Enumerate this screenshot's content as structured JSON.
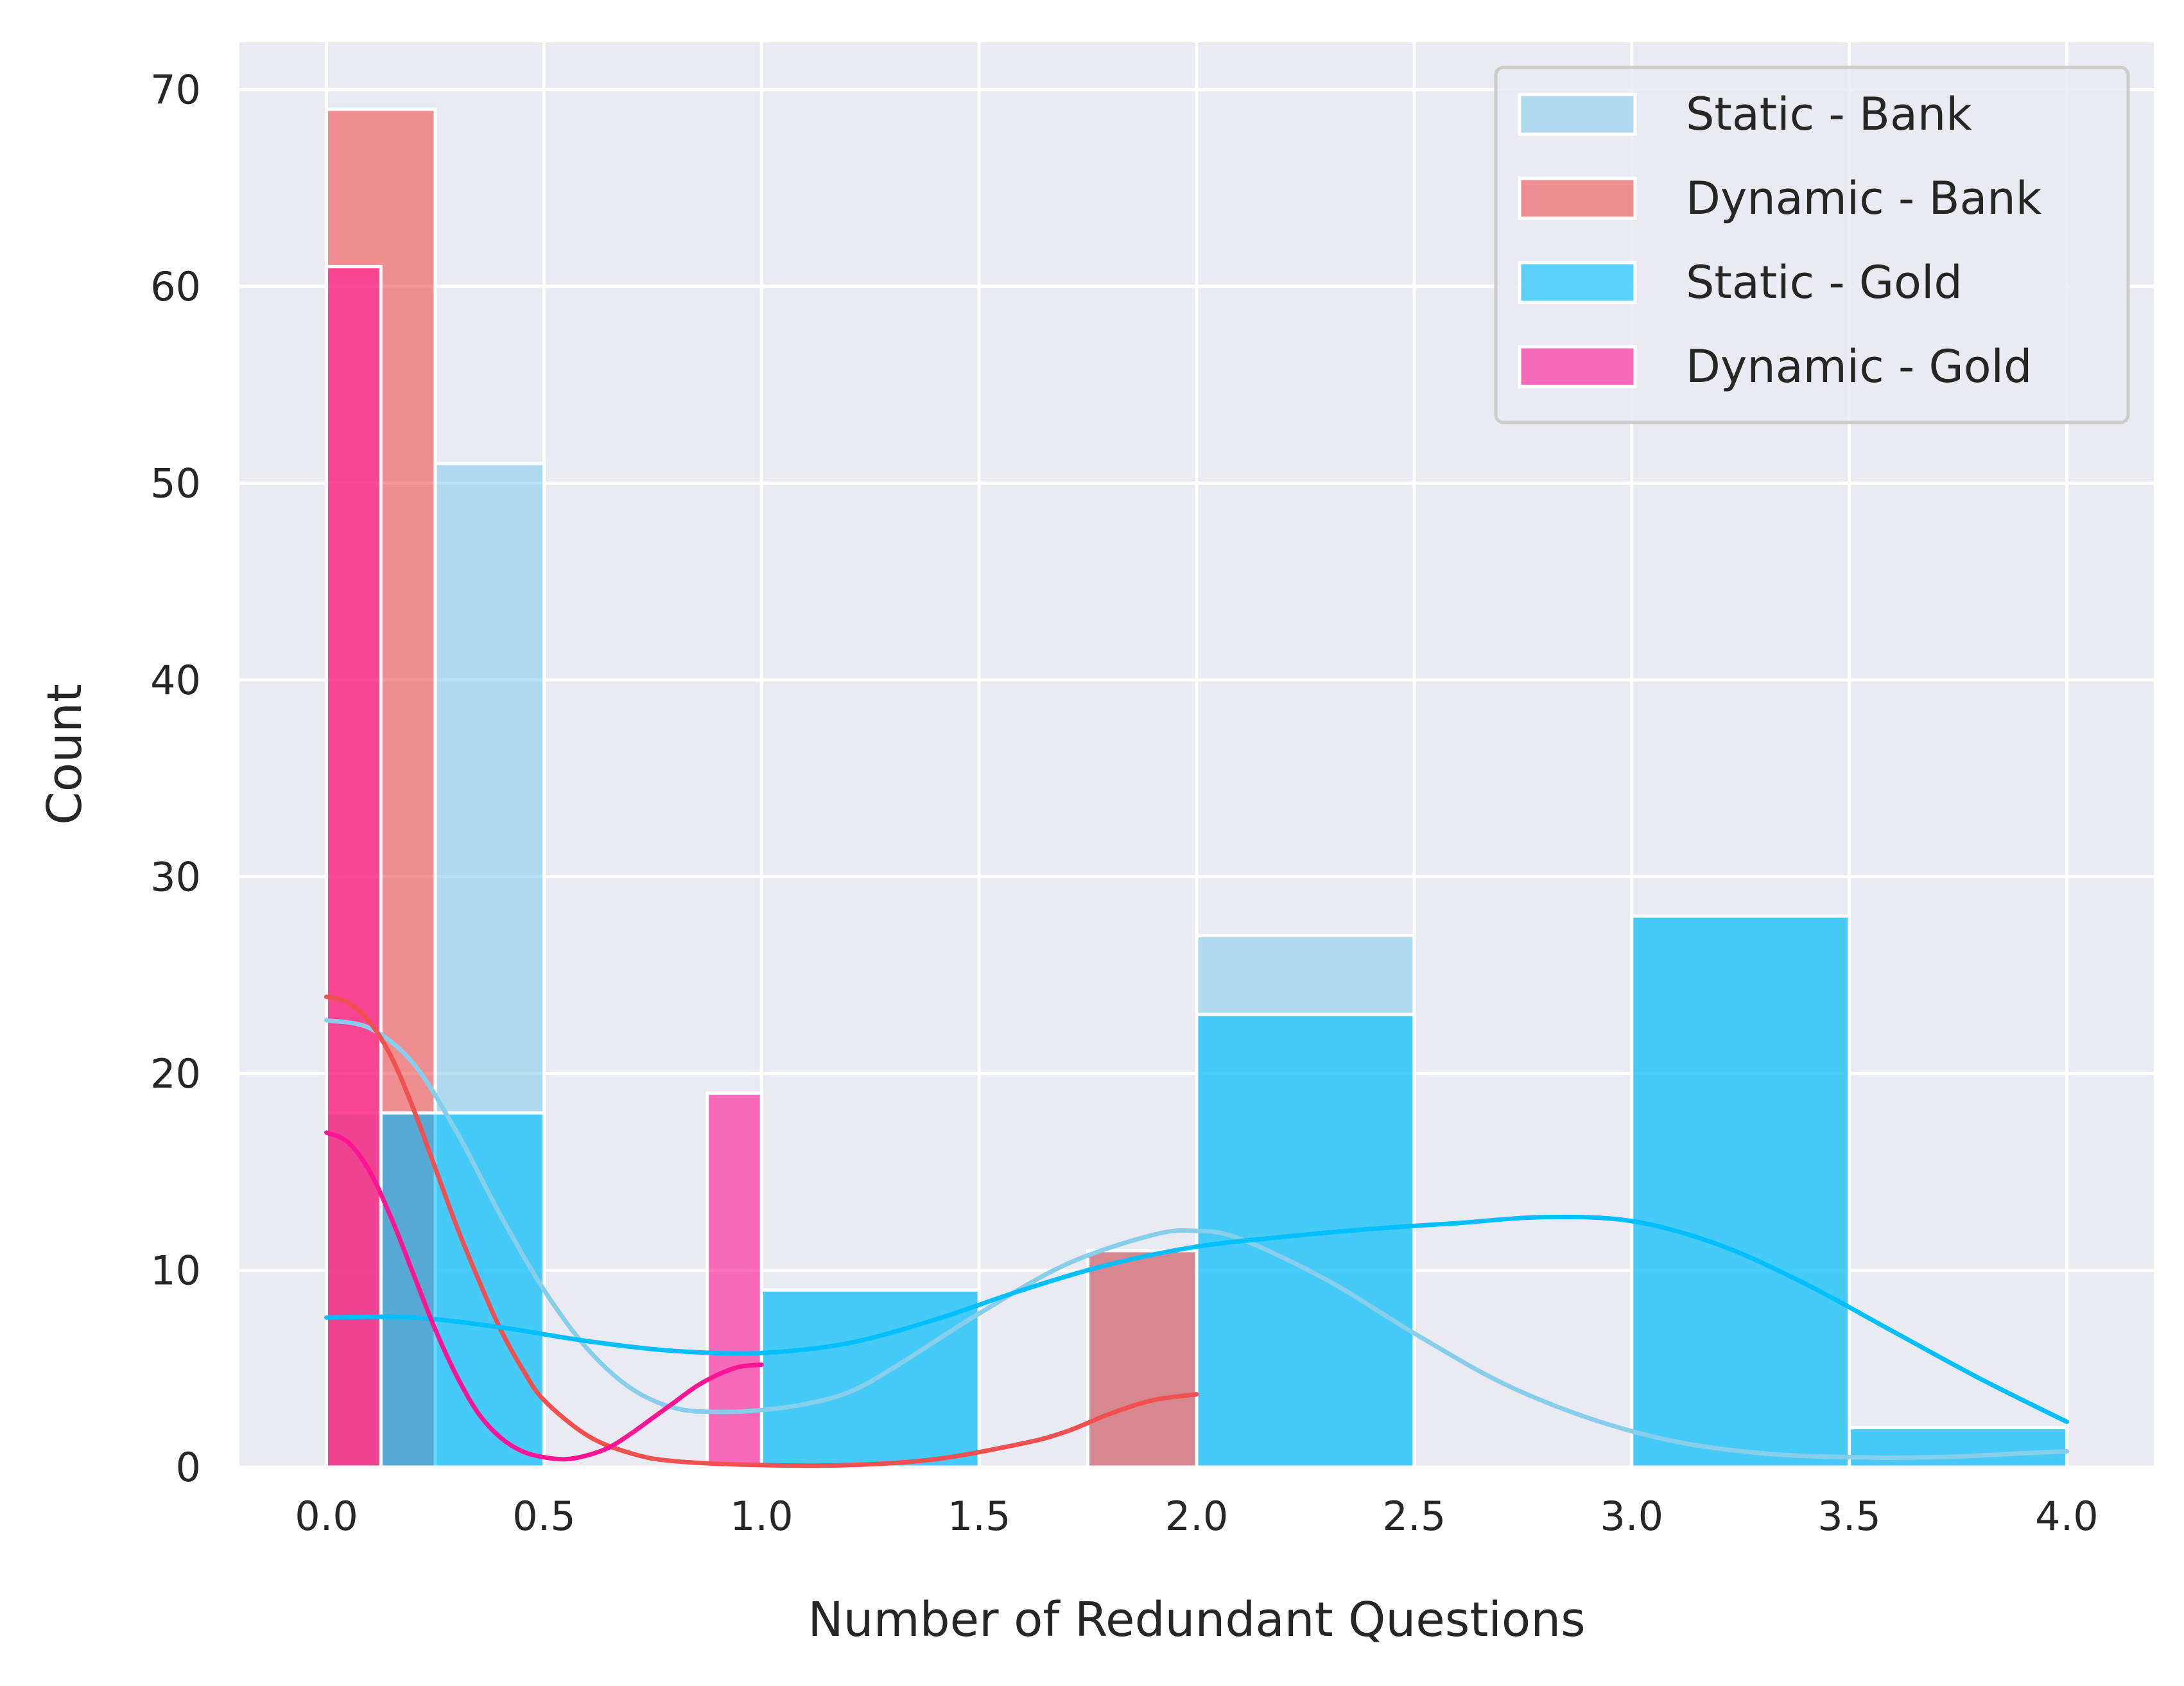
{
  "chart_data": {
    "type": "bar",
    "subtype": "histogram with kde",
    "xlabel": "Number of Redundant Questions",
    "ylabel": "Count",
    "xlim": [
      -0.2,
      4.2
    ],
    "ylim": [
      0,
      72.4
    ],
    "x_ticks": [
      "0.0",
      "0.5",
      "1.0",
      "1.5",
      "2.0",
      "2.5",
      "3.0",
      "3.5",
      "4.0"
    ],
    "y_ticks": [
      "0",
      "10",
      "20",
      "30",
      "40",
      "50",
      "60",
      "70"
    ],
    "grid": true,
    "background": "#EAEAF2",
    "legend_position": "top-right",
    "series": [
      {
        "name": "Static - Bank",
        "color": "#87CEEB",
        "bars": [
          {
            "x0": 0.0,
            "x1": 0.25,
            "value": 18
          },
          {
            "x0": 0.25,
            "x1": 0.5,
            "value": 51
          },
          {
            "x0": 1.0,
            "x1": 1.5,
            "value": 9
          },
          {
            "x0": 1.75,
            "x1": 2.0,
            "value": 11
          },
          {
            "x0": 2.0,
            "x1": 2.5,
            "value": 27
          },
          {
            "x0": 3.0,
            "x1": 3.5,
            "value": 28
          },
          {
            "x0": 3.5,
            "x1": 4.0,
            "value": 2
          }
        ],
        "kde": [
          [
            0.0,
            22.7
          ],
          [
            0.1,
            22.3
          ],
          [
            0.2,
            20.5
          ],
          [
            0.3,
            17.0
          ],
          [
            0.4,
            12.8
          ],
          [
            0.5,
            9.0
          ],
          [
            0.6,
            6.0
          ],
          [
            0.7,
            4.0
          ],
          [
            0.8,
            3.0
          ],
          [
            0.9,
            2.8
          ],
          [
            1.0,
            2.9
          ],
          [
            1.1,
            3.2
          ],
          [
            1.2,
            3.8
          ],
          [
            1.3,
            5.0
          ],
          [
            1.5,
            7.8
          ],
          [
            1.7,
            10.3
          ],
          [
            1.9,
            11.8
          ],
          [
            2.0,
            12.0
          ],
          [
            2.1,
            11.6
          ],
          [
            2.3,
            9.5
          ],
          [
            2.5,
            6.8
          ],
          [
            2.7,
            4.3
          ],
          [
            2.9,
            2.5
          ],
          [
            3.1,
            1.3
          ],
          [
            3.3,
            0.7
          ],
          [
            3.5,
            0.5
          ],
          [
            3.7,
            0.5
          ],
          [
            3.9,
            0.7
          ],
          [
            4.0,
            0.8
          ]
        ]
      },
      {
        "name": "Dynamic - Bank",
        "color": "#F05050",
        "bars": [
          {
            "x0": 0.0,
            "x1": 0.25,
            "value": 69
          },
          {
            "x0": 1.75,
            "x1": 2.0,
            "value": 11
          }
        ],
        "kde": [
          [
            0.0,
            23.9
          ],
          [
            0.05,
            23.6
          ],
          [
            0.1,
            22.6
          ],
          [
            0.15,
            20.8
          ],
          [
            0.2,
            18.2
          ],
          [
            0.25,
            15.2
          ],
          [
            0.3,
            12.2
          ],
          [
            0.35,
            9.5
          ],
          [
            0.4,
            7.0
          ],
          [
            0.45,
            5.0
          ],
          [
            0.5,
            3.4
          ],
          [
            0.6,
            1.6
          ],
          [
            0.7,
            0.7
          ],
          [
            0.8,
            0.3
          ],
          [
            1.0,
            0.1
          ],
          [
            1.2,
            0.1
          ],
          [
            1.4,
            0.4
          ],
          [
            1.6,
            1.2
          ],
          [
            1.7,
            1.8
          ],
          [
            1.8,
            2.7
          ],
          [
            1.9,
            3.4
          ],
          [
            2.0,
            3.7
          ]
        ]
      },
      {
        "name": "Static - Gold",
        "color": "#00BFFF",
        "bars": [
          {
            "x0": 0.125,
            "x1": 0.5,
            "value": 18
          },
          {
            "x0": 1.0,
            "x1": 1.5,
            "value": 9
          },
          {
            "x0": 2.0,
            "x1": 2.5,
            "value": 23
          },
          {
            "x0": 3.0,
            "x1": 3.5,
            "value": 28
          },
          {
            "x0": 3.5,
            "x1": 4.0,
            "value": 2
          }
        ],
        "kde": [
          [
            0.0,
            7.6
          ],
          [
            0.2,
            7.6
          ],
          [
            0.4,
            7.1
          ],
          [
            0.6,
            6.4
          ],
          [
            0.8,
            5.9
          ],
          [
            1.0,
            5.8
          ],
          [
            1.2,
            6.3
          ],
          [
            1.4,
            7.5
          ],
          [
            1.6,
            9.0
          ],
          [
            1.8,
            10.3
          ],
          [
            2.0,
            11.2
          ],
          [
            2.2,
            11.7
          ],
          [
            2.4,
            12.1
          ],
          [
            2.6,
            12.4
          ],
          [
            2.8,
            12.7
          ],
          [
            3.0,
            12.5
          ],
          [
            3.2,
            11.3
          ],
          [
            3.4,
            9.3
          ],
          [
            3.6,
            6.9
          ],
          [
            3.8,
            4.5
          ],
          [
            4.0,
            2.3
          ]
        ]
      },
      {
        "name": "Dynamic - Gold",
        "color": "#FF1493",
        "bars": [
          {
            "x0": 0.0,
            "x1": 0.125,
            "value": 61
          },
          {
            "x0": 0.875,
            "x1": 1.0,
            "value": 19
          }
        ],
        "kde": [
          [
            0.0,
            17.0
          ],
          [
            0.05,
            16.5
          ],
          [
            0.1,
            15.0
          ],
          [
            0.15,
            12.6
          ],
          [
            0.2,
            9.8
          ],
          [
            0.25,
            7.0
          ],
          [
            0.3,
            4.6
          ],
          [
            0.35,
            2.7
          ],
          [
            0.4,
            1.5
          ],
          [
            0.45,
            0.8
          ],
          [
            0.5,
            0.5
          ],
          [
            0.55,
            0.4
          ],
          [
            0.6,
            0.6
          ],
          [
            0.65,
            1.0
          ],
          [
            0.7,
            1.7
          ],
          [
            0.75,
            2.5
          ],
          [
            0.8,
            3.3
          ],
          [
            0.85,
            4.1
          ],
          [
            0.9,
            4.7
          ],
          [
            0.95,
            5.1
          ],
          [
            1.0,
            5.2
          ]
        ]
      }
    ]
  }
}
